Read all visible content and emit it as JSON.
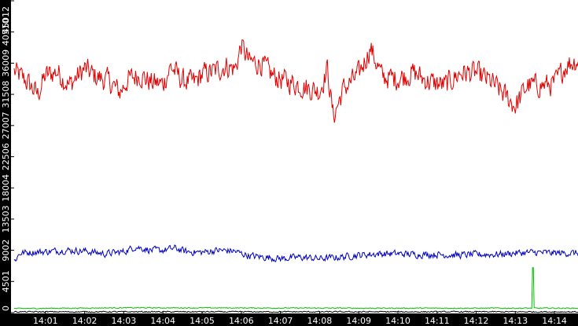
{
  "chart_data": {
    "type": "line",
    "x_ticks": [
      "14:01",
      "14:02",
      "14:03",
      "14:04",
      "14:05",
      "14:06",
      "14:07",
      "14:08",
      "14:09",
      "14:10",
      "14:11",
      "14:12",
      "14:13",
      "14:14"
    ],
    "y_ticks": [
      0,
      4501,
      9002,
      13503,
      18004,
      22506,
      27007,
      31508,
      36009,
      40510,
      45012
    ],
    "ylim": [
      0,
      45012
    ],
    "xlim_minutes": [
      0.2,
      14.6
    ],
    "grid": false,
    "colors": {
      "background": "#ffffff",
      "axis_band": "#000000",
      "label_text": "#ffffff"
    },
    "series": [
      {
        "color": "#e00000",
        "noise": 1500,
        "points": [
          [
            0.2,
            34800
          ],
          [
            0.5,
            33500
          ],
          [
            0.8,
            31500
          ],
          [
            1.0,
            34200
          ],
          [
            1.3,
            34800
          ],
          [
            1.6,
            32800
          ],
          [
            2.0,
            35200
          ],
          [
            2.3,
            34000
          ],
          [
            2.6,
            33500
          ],
          [
            2.9,
            31800
          ],
          [
            3.1,
            33600
          ],
          [
            3.4,
            34400
          ],
          [
            3.7,
            33200
          ],
          [
            4.0,
            33000
          ],
          [
            4.2,
            35500
          ],
          [
            4.5,
            33500
          ],
          [
            4.8,
            33200
          ],
          [
            5.0,
            34400
          ],
          [
            5.3,
            34800
          ],
          [
            5.6,
            35600
          ],
          [
            5.85,
            35200
          ],
          [
            6.0,
            38600
          ],
          [
            6.2,
            36200
          ],
          [
            6.5,
            36000
          ],
          [
            6.8,
            34200
          ],
          [
            7.1,
            33500
          ],
          [
            7.4,
            33000
          ],
          [
            7.7,
            32400
          ],
          [
            8.0,
            32000
          ],
          [
            8.2,
            35200
          ],
          [
            8.35,
            28200
          ],
          [
            8.6,
            32200
          ],
          [
            9.0,
            34400
          ],
          [
            9.3,
            38200
          ],
          [
            9.6,
            34000
          ],
          [
            10.0,
            33800
          ],
          [
            10.4,
            34600
          ],
          [
            10.8,
            33300
          ],
          [
            11.2,
            32800
          ],
          [
            11.6,
            34600
          ],
          [
            12.0,
            34600
          ],
          [
            12.4,
            33200
          ],
          [
            12.8,
            31000
          ],
          [
            13.0,
            29800
          ],
          [
            13.3,
            32800
          ],
          [
            13.7,
            32800
          ],
          [
            14.0,
            33000
          ],
          [
            14.3,
            35800
          ],
          [
            14.6,
            36500
          ]
        ]
      },
      {
        "color": "#0000c0",
        "noise": 450,
        "points": [
          [
            0.2,
            7400
          ],
          [
            0.35,
            8600
          ],
          [
            0.6,
            8700
          ],
          [
            1.0,
            8800
          ],
          [
            1.5,
            9000
          ],
          [
            2.0,
            8900
          ],
          [
            2.5,
            8500
          ],
          [
            3.0,
            8800
          ],
          [
            3.3,
            9500
          ],
          [
            3.7,
            9000
          ],
          [
            4.0,
            9000
          ],
          [
            4.3,
            9300
          ],
          [
            4.6,
            8800
          ],
          [
            5.0,
            8700
          ],
          [
            5.4,
            9000
          ],
          [
            5.8,
            8900
          ],
          [
            6.2,
            8200
          ],
          [
            6.6,
            8000
          ],
          [
            7.0,
            7800
          ],
          [
            7.5,
            8000
          ],
          [
            8.0,
            7800
          ],
          [
            8.5,
            8000
          ],
          [
            9.0,
            8300
          ],
          [
            9.5,
            8500
          ],
          [
            10.0,
            8500
          ],
          [
            10.5,
            8400
          ],
          [
            11.0,
            8400
          ],
          [
            11.5,
            8300
          ],
          [
            12.0,
            8400
          ],
          [
            12.5,
            8400
          ],
          [
            13.0,
            8600
          ],
          [
            13.5,
            8700
          ],
          [
            14.0,
            8600
          ],
          [
            14.6,
            8600
          ]
        ]
      },
      {
        "color": "#00c000",
        "noise": 60,
        "spike": {
          "x": 13.45,
          "value": 6500
        },
        "points": [
          [
            0.2,
            600
          ],
          [
            3.0,
            700
          ],
          [
            6.0,
            680
          ],
          [
            9.0,
            650
          ],
          [
            12.0,
            650
          ],
          [
            14.6,
            650
          ]
        ]
      },
      {
        "color": "#000000",
        "noise": 80,
        "points": [
          [
            0.2,
            120
          ],
          [
            14.6,
            120
          ]
        ]
      }
    ]
  }
}
